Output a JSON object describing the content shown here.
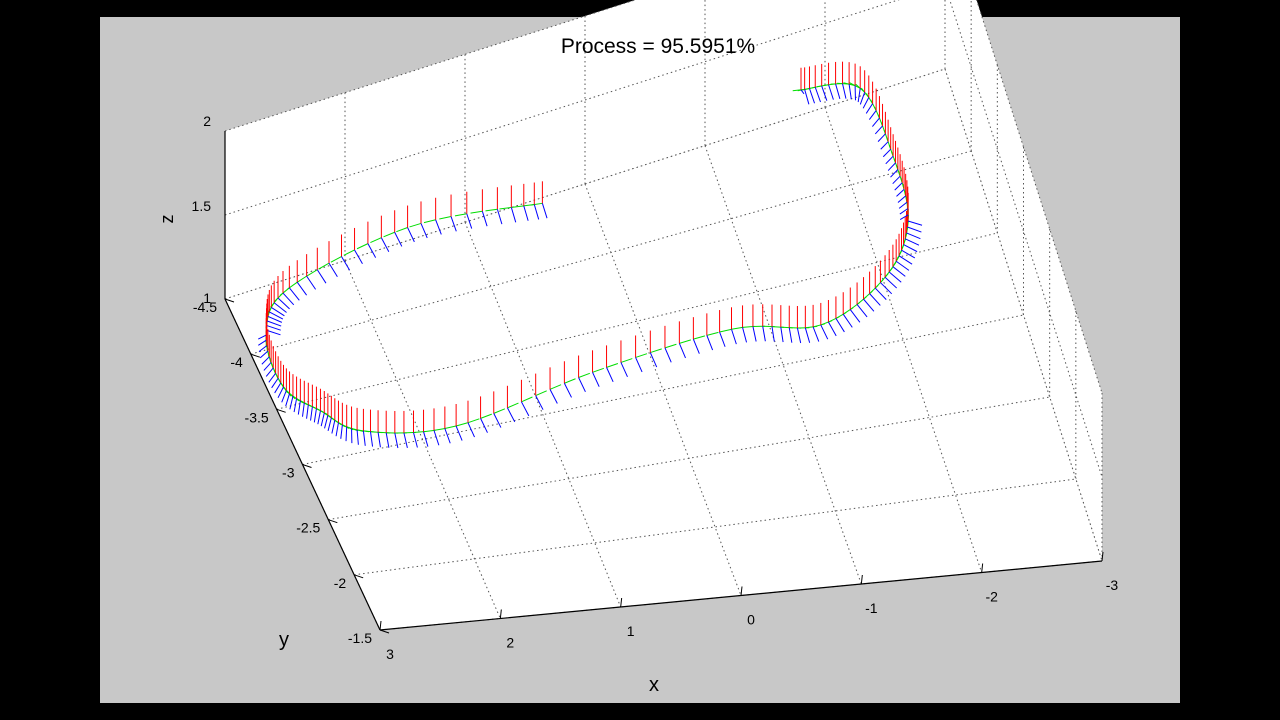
{
  "window": {
    "background": "#c8c8c8",
    "border": "#000000"
  },
  "chart_data": {
    "type": "3d-line-with-orientation-triads",
    "title": "Process = 95.5951%",
    "xlabel": "x",
    "ylabel": "y",
    "zlabel": "z",
    "xlim": [
      -3,
      3
    ],
    "ylim": [
      -4.5,
      -1.5
    ],
    "zlim": [
      1,
      2
    ],
    "x_ticks": [
      "3",
      "2",
      "1",
      "0",
      "-1",
      "-2",
      "-3"
    ],
    "y_ticks": [
      "-4.5",
      "-4",
      "-3.5",
      "-3",
      "-2.5",
      "-2",
      "-1.5"
    ],
    "z_ticks": [
      "1",
      "1.5",
      "2"
    ],
    "grid": true,
    "axis_colors": {
      "x": "#ff0000",
      "y": "#00dd00",
      "z": "#0000ff"
    },
    "trajectory": [
      {
        "x": 0.42,
        "y": -4.35,
        "z": 1.1
      },
      {
        "x": 1.5,
        "y": -4.45,
        "z": 1.12
      },
      {
        "x": 2.55,
        "y": -4.3,
        "z": 1.1
      },
      {
        "x": 2.85,
        "y": -4.05,
        "z": 1.05
      },
      {
        "x": 2.9,
        "y": -3.6,
        "z": 1.05
      },
      {
        "x": 2.7,
        "y": -3.35,
        "z": 1.04
      },
      {
        "x": 2.45,
        "y": -3.1,
        "z": 1.05
      },
      {
        "x": 1.7,
        "y": -3.05,
        "z": 1.0
      },
      {
        "x": 0.5,
        "y": -3.2,
        "z": 1.02
      },
      {
        "x": -0.7,
        "y": -3.3,
        "z": 1.0
      },
      {
        "x": -1.4,
        "y": -3.2,
        "z": 1.0
      },
      {
        "x": -2.0,
        "y": -3.35,
        "z": 1.05
      },
      {
        "x": -2.3,
        "y": -3.6,
        "z": 1.1
      },
      {
        "x": -2.35,
        "y": -4.0,
        "z": 1.1
      },
      {
        "x": -2.25,
        "y": -4.4,
        "z": 1.15
      },
      {
        "x": -1.8,
        "y": -4.5,
        "z": 1.15
      }
    ]
  }
}
